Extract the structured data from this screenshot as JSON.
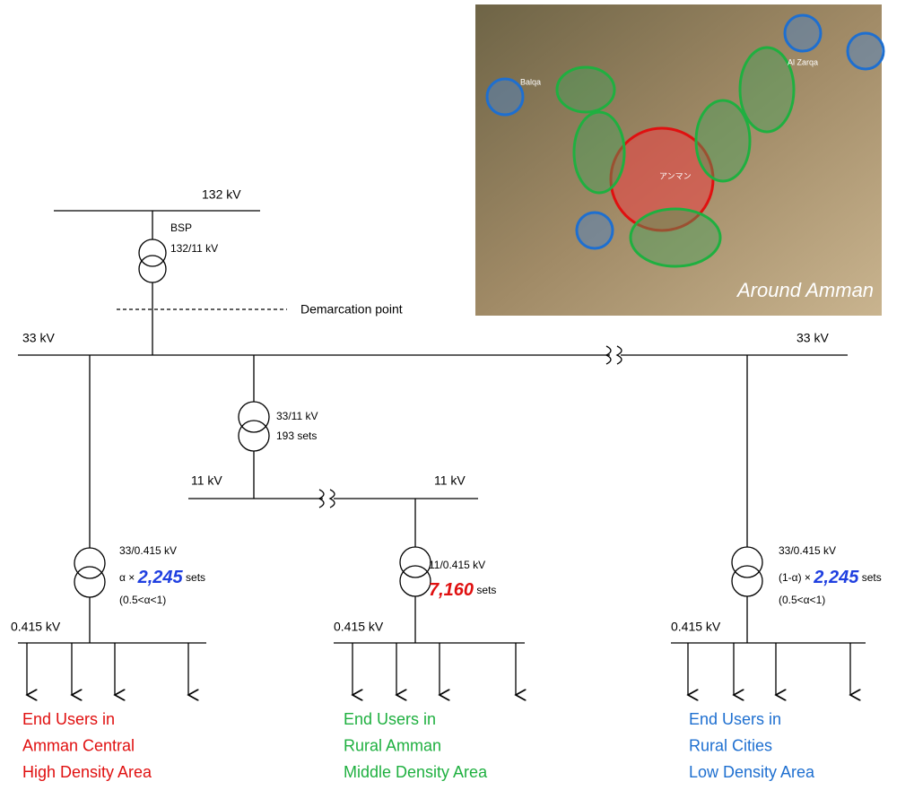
{
  "map": {
    "title": "Around Amman",
    "places": [
      "Balqa",
      "Al Zarqa",
      "アンマン"
    ]
  },
  "bsp": {
    "bus": "132 kV",
    "name": "BSP",
    "ratio": "132/11 kV",
    "demarcation": "Demarcation point"
  },
  "bus33": {
    "left": "33 kV",
    "right": "33 kV"
  },
  "sub33_11": {
    "ratio": "33/11 kV",
    "sets": "193 sets",
    "bus_left": "11 kV",
    "bus_right": "11 kV"
  },
  "branches": [
    {
      "ratio": "33/0.415 kV",
      "factor": "α ×",
      "count": "2,245",
      "unit": "sets",
      "condition": "(0.5<α<1)",
      "bus": "0.415 kV",
      "users": [
        "End Users in",
        "Amman Central",
        "High Density Area"
      ]
    },
    {
      "ratio": "11/0.415 kV",
      "count": "7,160",
      "unit": "sets",
      "bus": "0.415 kV",
      "users": [
        "End Users in",
        "Rural Amman",
        "Middle Density Area"
      ]
    },
    {
      "ratio": "33/0.415 kV",
      "factor": "(1-α) ×",
      "count": "2,245",
      "unit": "sets",
      "condition": "(0.5<α<1)",
      "bus": "0.415 kV",
      "users": [
        "End Users in",
        "Rural Cities",
        "Low Density Area"
      ]
    }
  ]
}
